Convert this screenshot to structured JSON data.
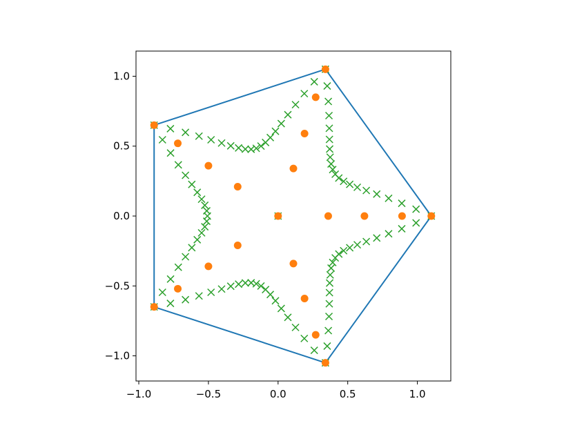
{
  "chart_data": {
    "type": "scatter",
    "title": "",
    "xlabel": "",
    "ylabel": "",
    "xlim": [
      -1.02,
      1.24
    ],
    "ylim": [
      -1.18,
      1.18
    ],
    "x_ticks": [
      -1.0,
      -0.5,
      0.0,
      0.5,
      1.0
    ],
    "x_tick_labels": [
      "−1.0",
      "−0.5",
      "0.0",
      "0.5",
      "1.0"
    ],
    "y_ticks": [
      -1.0,
      -0.5,
      0.0,
      0.5,
      1.0
    ],
    "y_tick_labels": [
      "−1.0",
      "−0.5",
      "0.0",
      "0.5",
      "1.0"
    ],
    "grid": false,
    "legend": "none",
    "colors": {
      "line": "#1f77b4",
      "dots": "#ff7f0e",
      "crosses": "#2ca02c"
    },
    "series": [
      {
        "type": "line",
        "closed": true,
        "x": [
          1.1,
          0.34,
          -0.89,
          -0.89,
          0.34
        ],
        "y": [
          0.0,
          1.05,
          0.65,
          -0.65,
          -1.05
        ]
      },
      {
        "type": "scatter",
        "marker": "o",
        "x": [
          0,
          0.36,
          0.62,
          0.89,
          1.1,
          0.11,
          0.19,
          0.27,
          0.34,
          -0.29,
          -0.5,
          -0.72,
          -0.89,
          -0.29,
          -0.5,
          -0.72,
          -0.89,
          0.11,
          0.19,
          0.27,
          0.34
        ],
        "y": [
          0,
          0,
          0,
          0,
          0,
          0.34,
          0.59,
          0.85,
          1.05,
          0.21,
          0.36,
          0.52,
          0.65,
          -0.21,
          -0.36,
          -0.52,
          -0.65,
          -0.34,
          -0.59,
          -0.85,
          -1.05
        ]
      },
      {
        "type": "scatter",
        "marker": "x",
        "shape": "concave pentagon curve through the five polygon vertices plus centre point",
        "pinch": 0.43,
        "points_per_edge": 20,
        "vertices_x": [
          1.1,
          0.34,
          -0.89,
          -0.89,
          0.34
        ],
        "vertices_y": [
          0.0,
          1.05,
          0.65,
          -0.65,
          -1.05
        ],
        "extra_points_x": [
          0
        ],
        "extra_points_y": [
          0
        ]
      }
    ]
  }
}
